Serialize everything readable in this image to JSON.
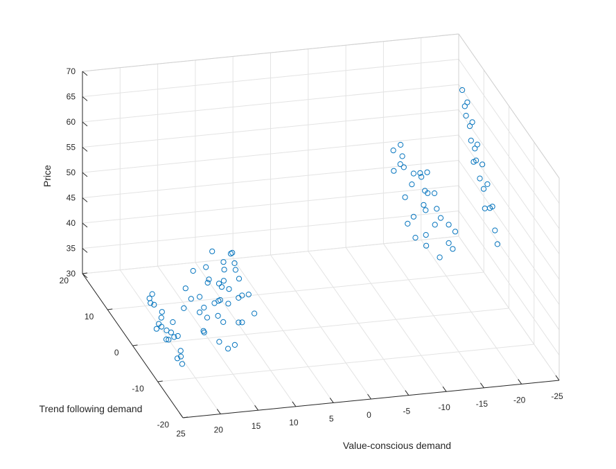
{
  "chart_data": {
    "type": "scatter3d",
    "title": "",
    "xlabel": "Value-conscious demand",
    "ylabel": "Trend following demand",
    "zlabel": "Price",
    "xlim": [
      -25,
      25
    ],
    "ylim": [
      -20,
      20
    ],
    "zlim": [
      30,
      70
    ],
    "x_ticks": [
      {
        "v": 25,
        "label": "25"
      },
      {
        "v": 20,
        "label": "20"
      },
      {
        "v": 15,
        "label": "15"
      },
      {
        "v": 10,
        "label": "10"
      },
      {
        "v": 5,
        "label": "5"
      },
      {
        "v": 0,
        "label": "0"
      },
      {
        "v": -5,
        "label": "-5"
      },
      {
        "v": -10,
        "label": "-10"
      },
      {
        "v": -15,
        "label": "-15"
      },
      {
        "v": -20,
        "label": "-20"
      },
      {
        "v": -25,
        "label": "-25"
      }
    ],
    "y_ticks": [
      {
        "v": 20,
        "label": "20"
      },
      {
        "v": 10,
        "label": "10"
      },
      {
        "v": 0,
        "label": "0"
      },
      {
        "v": -10,
        "label": "-10"
      },
      {
        "v": -20,
        "label": "-20"
      }
    ],
    "z_ticks": [
      {
        "v": 70,
        "label": "70"
      },
      {
        "v": 65,
        "label": "65"
      },
      {
        "v": 60,
        "label": "60"
      },
      {
        "v": 55,
        "label": "55"
      },
      {
        "v": 50,
        "label": "50"
      },
      {
        "v": 45,
        "label": "45"
      },
      {
        "v": 40,
        "label": "40"
      },
      {
        "v": 35,
        "label": "35"
      },
      {
        "v": 30,
        "label": "30"
      }
    ],
    "grid": true,
    "marker": "open-circle",
    "marker_color": "#0072BD",
    "clusters_description_note": "",
    "series": [
      {
        "points": [
          [
            20.8,
            -6.5,
            33.0
          ],
          [
            20.9,
            -4.2,
            34.1
          ],
          [
            21.0,
            -1.5,
            33.5
          ],
          [
            20.7,
            1.2,
            35.2
          ],
          [
            20.9,
            3.8,
            34.8
          ],
          [
            21.1,
            -8.0,
            31.5
          ],
          [
            20.6,
            -2.8,
            36.0
          ],
          [
            21.0,
            0.5,
            32.8
          ],
          [
            20.8,
            5.5,
            33.9
          ],
          [
            20.9,
            -5.5,
            30.8
          ],
          [
            20.7,
            2.5,
            31.9
          ],
          [
            21.1,
            -3.6,
            34.6
          ],
          [
            20.8,
            -0.8,
            31.2
          ],
          [
            20.9,
            4.5,
            36.4
          ],
          [
            21.0,
            -7.2,
            32.4
          ],
          [
            20.6,
            1.8,
            33.6
          ],
          [
            21.0,
            -6.0,
            35.6
          ],
          [
            20.8,
            3.1,
            30.5
          ],
          [
            20.9,
            -2.0,
            32.0
          ],
          [
            20.7,
            6.2,
            34.3
          ],
          [
            16.5,
            -3.0,
            33.5
          ],
          [
            15.5,
            -1.2,
            35.0
          ],
          [
            14.0,
            0.4,
            36.5
          ],
          [
            13.0,
            1.8,
            35.8
          ],
          [
            12.0,
            3.5,
            37.2
          ],
          [
            15.0,
            -4.5,
            32.5
          ],
          [
            13.8,
            -2.5,
            34.8
          ],
          [
            12.5,
            -0.6,
            36.9
          ],
          [
            11.8,
            1.2,
            38.4
          ],
          [
            14.6,
            2.8,
            34.0
          ],
          [
            16.8,
            4.2,
            33.2
          ],
          [
            13.2,
            5.0,
            37.8
          ],
          [
            12.2,
            -3.8,
            35.4
          ],
          [
            11.0,
            -1.6,
            39.0
          ],
          [
            15.8,
            0.9,
            34.6
          ],
          [
            14.2,
            -5.6,
            31.8
          ],
          [
            12.8,
            2.2,
            38.9
          ],
          [
            11.5,
            4.0,
            40.2
          ],
          [
            16.2,
            -1.8,
            32.9
          ],
          [
            13.6,
            -6.5,
            33.1
          ],
          [
            10.8,
            0.2,
            41.0
          ],
          [
            12.9,
            6.4,
            36.1
          ],
          [
            14.9,
            3.6,
            35.6
          ],
          [
            11.9,
            -2.9,
            39.6
          ],
          [
            13.4,
            -0.1,
            37.4
          ],
          [
            15.3,
            5.8,
            33.7
          ],
          [
            10.5,
            2.9,
            42.1
          ],
          [
            12.1,
            -4.9,
            36.2
          ],
          [
            14.4,
            -2.2,
            35.9
          ],
          [
            11.2,
            5.2,
            40.8
          ],
          [
            12.6,
            8.0,
            38.0
          ],
          [
            13.9,
            9.2,
            36.6
          ],
          [
            15.6,
            7.1,
            34.9
          ],
          [
            10.9,
            -6.2,
            38.7
          ],
          [
            12.4,
            1.5,
            39.9
          ],
          [
            12.0,
            -2.0,
            44.5
          ],
          [
            11.5,
            0.8,
            45.8
          ],
          [
            10.8,
            3.5,
            43.6
          ],
          [
            12.6,
            5.5,
            42.9
          ],
          [
            11.2,
            -4.8,
            41.5
          ]
        ]
      },
      {
        "points": [
          [
            -20.8,
            -6.0,
            55.0
          ],
          [
            -20.8,
            -4.0,
            58.0
          ],
          [
            -20.8,
            -2.0,
            60.5
          ],
          [
            -20.8,
            0.0,
            63.0
          ],
          [
            -20.8,
            2.0,
            66.0
          ],
          [
            -20.8,
            4.0,
            68.5
          ],
          [
            -20.8,
            -3.0,
            52.5
          ],
          [
            -20.8,
            -1.0,
            57.0
          ],
          [
            -20.8,
            1.0,
            61.5
          ],
          [
            -20.8,
            3.0,
            64.5
          ],
          [
            -20.8,
            5.0,
            67.0
          ],
          [
            -20.8,
            -5.0,
            54.0
          ],
          [
            -20.8,
            6.0,
            69.5
          ],
          [
            -20.8,
            -7.0,
            51.0
          ],
          [
            -20.8,
            0.5,
            59.5
          ],
          [
            -20.8,
            2.5,
            62.0
          ],
          [
            -20.8,
            -2.5,
            56.0
          ],
          [
            -20.8,
            4.5,
            65.5
          ],
          [
            -20.8,
            -8.0,
            49.0
          ],
          [
            -20.8,
            1.5,
            58.5
          ],
          [
            -16.0,
            -3.0,
            50.0
          ],
          [
            -15.0,
            -1.2,
            52.0
          ],
          [
            -14.0,
            0.5,
            54.5
          ],
          [
            -13.0,
            2.0,
            57.0
          ],
          [
            -12.0,
            3.5,
            59.5
          ],
          [
            -15.5,
            -4.5,
            47.5
          ],
          [
            -14.5,
            -2.0,
            49.5
          ],
          [
            -13.5,
            -0.5,
            52.5
          ],
          [
            -12.5,
            1.2,
            55.5
          ],
          [
            -11.5,
            2.8,
            58.5
          ],
          [
            -16.5,
            4.2,
            51.0
          ],
          [
            -15.2,
            5.5,
            53.5
          ],
          [
            -13.8,
            -6.0,
            46.0
          ],
          [
            -12.8,
            -3.5,
            48.8
          ],
          [
            -11.8,
            -1.6,
            51.2
          ],
          [
            -14.2,
            3.0,
            56.2
          ],
          [
            -12.2,
            4.8,
            60.8
          ],
          [
            -10.8,
            -2.2,
            50.4
          ],
          [
            -13.2,
            6.5,
            55.0
          ],
          [
            -16.2,
            0.8,
            48.6
          ],
          [
            -15.8,
            -5.2,
            46.8
          ],
          [
            -11.2,
            0.0,
            54.0
          ],
          [
            -10.5,
            2.4,
            57.6
          ],
          [
            -12.6,
            -4.2,
            47.2
          ],
          [
            -14.8,
            1.8,
            53.0
          ],
          [
            -17.0,
            -2.6,
            48.2
          ],
          [
            -11.6,
            5.9,
            59.0
          ],
          [
            -13.6,
            -1.0,
            51.8
          ],
          [
            -10.9,
            -5.0,
            49.6
          ],
          [
            -15.4,
            3.8,
            55.6
          ]
        ]
      }
    ]
  }
}
